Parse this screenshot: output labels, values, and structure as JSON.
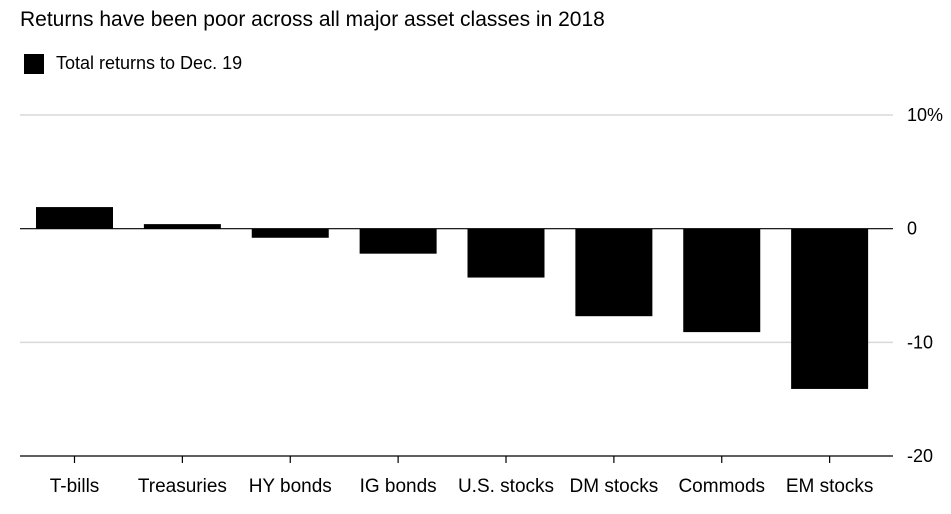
{
  "chart_data": {
    "type": "bar",
    "title": "Returns have been poor across all major asset classes in 2018",
    "legend": [
      {
        "label": "Total returns to Dec. 19",
        "color": "#000000"
      }
    ],
    "categories": [
      "T-bills",
      "Treasuries",
      "HY bonds",
      "IG bonds",
      "U.S. stocks",
      "DM stocks",
      "Commods",
      "EM stocks"
    ],
    "series": [
      {
        "name": "Total returns to Dec. 19",
        "values": [
          1.9,
          0.4,
          -0.8,
          -2.2,
          -4.3,
          -7.7,
          -9.1,
          -14.1
        ]
      }
    ],
    "yticks": [
      {
        "value": 10,
        "label": "10%"
      },
      {
        "value": 0,
        "label": "0"
      },
      {
        "value": -10,
        "label": "-10"
      },
      {
        "value": -20,
        "label": "-20"
      }
    ],
    "ylim": [
      -20,
      10
    ],
    "grid": true,
    "bar_color": "#000000",
    "grid_color": "#d9d9d9",
    "legend_position": "top-left"
  }
}
